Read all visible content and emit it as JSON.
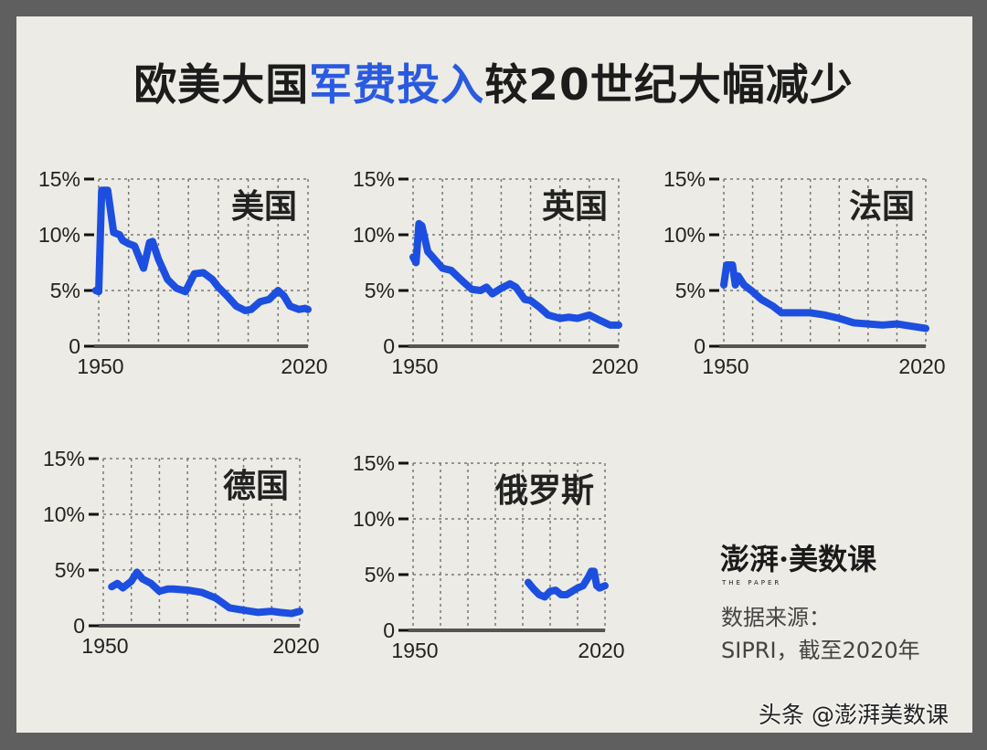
{
  "title": {
    "part1": "欧美大国",
    "highlight": "军费投入",
    "part2": "较20世纪大幅减少"
  },
  "colors": {
    "line": "#1c4fe0",
    "highlight": "#2a5ae0",
    "background": "#ecebe5",
    "frame": "#5f5f5f"
  },
  "chart_data": [
    {
      "type": "line",
      "title": "美国",
      "ylim": [
        0,
        15
      ],
      "xlim": [
        1950,
        2020
      ],
      "grid": true,
      "yticks": [
        "0",
        "5%",
        "10%",
        "15%"
      ],
      "xticks": [
        "1950",
        "2020"
      ],
      "x": [
        1949,
        1950,
        1951,
        1953,
        1955,
        1957,
        1958,
        1960,
        1962,
        1965,
        1967,
        1968,
        1970,
        1973,
        1976,
        1979,
        1982,
        1985,
        1988,
        1990,
        1993,
        1996,
        1999,
        2001,
        2004,
        2007,
        2010,
        2012,
        2014,
        2017,
        2019,
        2020
      ],
      "y": [
        5.0,
        4.9,
        14.0,
        14.0,
        10.2,
        10.0,
        9.5,
        9.2,
        9.0,
        7.0,
        9.3,
        9.4,
        7.8,
        6.0,
        5.2,
        4.9,
        6.5,
        6.6,
        6.0,
        5.3,
        4.5,
        3.6,
        3.2,
        3.3,
        4.0,
        4.2,
        5.0,
        4.5,
        3.6,
        3.3,
        3.4,
        3.3
      ]
    },
    {
      "type": "line",
      "title": "英国",
      "ylim": [
        0,
        15
      ],
      "xlim": [
        1950,
        2020
      ],
      "grid": true,
      "yticks": [
        "0",
        "5%",
        "10%",
        "15%"
      ],
      "xticks": [
        "1950",
        "2020"
      ],
      "x": [
        1950,
        1951,
        1952,
        1953,
        1955,
        1960,
        1963,
        1967,
        1970,
        1973,
        1975,
        1977,
        1980,
        1983,
        1985,
        1988,
        1990,
        1993,
        1996,
        2000,
        2003,
        2006,
        2010,
        2013,
        2017,
        2020
      ],
      "y": [
        8.0,
        7.5,
        11.0,
        10.8,
        8.5,
        7.0,
        6.8,
        5.8,
        5.1,
        5.0,
        5.3,
        4.7,
        5.2,
        5.6,
        5.3,
        4.2,
        4.1,
        3.5,
        2.8,
        2.5,
        2.6,
        2.5,
        2.8,
        2.4,
        1.9,
        1.9
      ]
    },
    {
      "type": "line",
      "title": "法国",
      "ylim": [
        0,
        15
      ],
      "xlim": [
        1950,
        2020
      ],
      "grid": true,
      "yticks": [
        "0",
        "5%",
        "10%",
        "15%"
      ],
      "xticks": [
        "1950",
        "2020"
      ],
      "x": [
        1950,
        1951,
        1953,
        1954,
        1955,
        1957,
        1960,
        1963,
        1967,
        1970,
        1975,
        1980,
        1985,
        1990,
        1995,
        2000,
        2005,
        2010,
        2015,
        2020
      ],
      "y": [
        5.5,
        7.3,
        7.3,
        5.5,
        6.3,
        5.5,
        4.9,
        4.2,
        3.6,
        3.0,
        3.0,
        3.0,
        2.8,
        2.5,
        2.1,
        2.0,
        1.9,
        2.0,
        1.8,
        1.6
      ]
    },
    {
      "type": "line",
      "title": "德国",
      "ylim": [
        0,
        15
      ],
      "xlim": [
        1950,
        2020
      ],
      "grid": true,
      "yticks": [
        "0",
        "5%",
        "10%",
        "15%"
      ],
      "xticks": [
        "1950",
        "2020"
      ],
      "x": [
        1953,
        1955,
        1957,
        1960,
        1962,
        1964,
        1967,
        1970,
        1973,
        1975,
        1980,
        1985,
        1990,
        1995,
        2000,
        2005,
        2010,
        2013,
        2017,
        2020
      ],
      "y": [
        3.5,
        3.8,
        3.4,
        4.0,
        4.8,
        4.2,
        3.8,
        3.1,
        3.3,
        3.3,
        3.2,
        3.0,
        2.5,
        1.6,
        1.4,
        1.2,
        1.3,
        1.2,
        1.1,
        1.3
      ]
    },
    {
      "type": "line",
      "title": "俄罗斯",
      "ylim": [
        0,
        15
      ],
      "xlim": [
        1950,
        2020
      ],
      "grid": true,
      "yticks": [
        "0",
        "5%",
        "10%",
        "15%"
      ],
      "xticks": [
        "1950",
        "2020"
      ],
      "x": [
        1992,
        1994,
        1996,
        1998,
        2000,
        2002,
        2004,
        2006,
        2008,
        2010,
        2012,
        2014,
        2015,
        2016,
        2017,
        2018,
        2020
      ],
      "y": [
        4.3,
        3.7,
        3.2,
        3.0,
        3.5,
        3.6,
        3.2,
        3.2,
        3.5,
        3.8,
        4.0,
        4.8,
        5.3,
        5.3,
        4.0,
        3.8,
        4.0
      ]
    }
  ],
  "logo": {
    "text": "澎湃·美数课",
    "subtext": "THE PAPER"
  },
  "source": {
    "line1": "数据来源：",
    "line2": "SIPRI，截至2020年"
  },
  "watermark": "头条 @澎湃美数课"
}
